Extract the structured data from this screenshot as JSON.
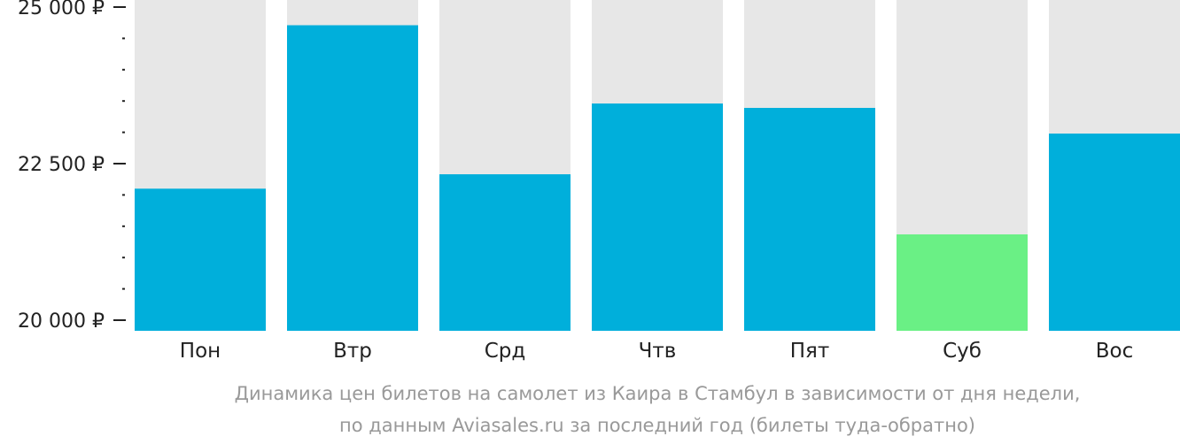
{
  "chart_data": {
    "type": "bar",
    "categories": [
      "Пон",
      "Втр",
      "Срд",
      "Чтв",
      "Пят",
      "Суб",
      "Вос"
    ],
    "values": [
      22100,
      24710,
      22330,
      23460,
      23390,
      21370,
      22980
    ],
    "ylim": [
      20000,
      25000
    ],
    "yticks": [
      20000,
      22500,
      25000
    ],
    "ytick_labels": [
      "20 000 ₽",
      "22 500 ₽",
      "25 000 ₽"
    ],
    "minor_tick_step": 500,
    "highlight_index": 5,
    "caption_lines": [
      "Динамика цен билетов на самолет из Каира в Стамбул в зависимости от дня недели,",
      "по данным Aviasales.ru за последний год (билеты туда-обратно)"
    ],
    "colors": {
      "bar": "#00afdb",
      "highlight_bar": "#6af085",
      "background_bar": "#e7e7e7",
      "tick": "#222222",
      "caption": "#999999"
    }
  }
}
